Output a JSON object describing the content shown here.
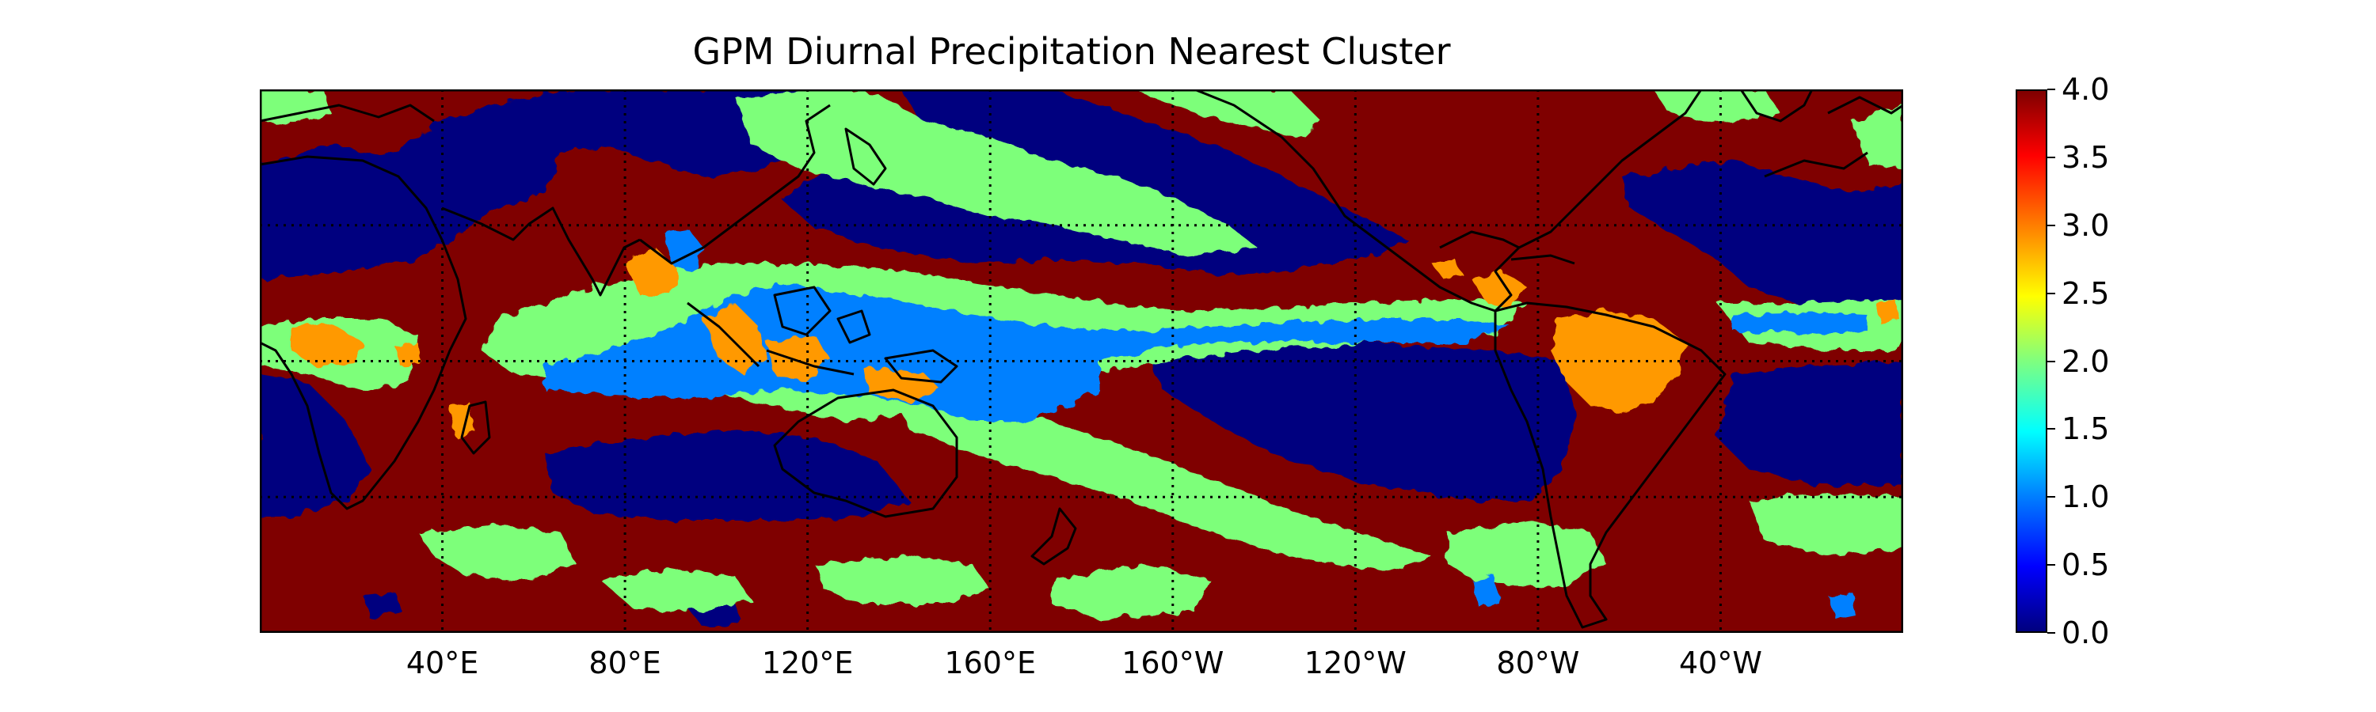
{
  "title": "GPM Diurnal Precipitation Nearest Cluster",
  "map": {
    "projection": "PlateCarree",
    "central_longitude": 180,
    "lon_range": [
      0,
      360
    ],
    "lat_range": [
      -50,
      50
    ],
    "gridlines": "dotted",
    "coastlines": true,
    "x_tick_labels": [
      "40°E",
      "80°E",
      "120°E",
      "160°E",
      "160°W",
      "120°W",
      "80°W",
      "40°W"
    ],
    "x_tick_lons": [
      40,
      80,
      120,
      160,
      200,
      240,
      280,
      320
    ],
    "gridline_lats": [
      -25,
      0,
      25
    ]
  },
  "colorbar": {
    "colormap": "jet",
    "vmin": 0.0,
    "vmax": 4.0,
    "tick_labels": [
      "0.0",
      "0.5",
      "1.0",
      "1.5",
      "2.0",
      "2.5",
      "3.0",
      "3.5",
      "4.0"
    ],
    "tick_values": [
      0.0,
      0.5,
      1.0,
      1.5,
      2.0,
      2.5,
      3.0,
      3.5,
      4.0
    ]
  },
  "clusters": {
    "0": "#00007f",
    "1": "#0080ff",
    "2": "#7dff7a",
    "3": "#ff9900",
    "4": "#7f0000"
  }
}
